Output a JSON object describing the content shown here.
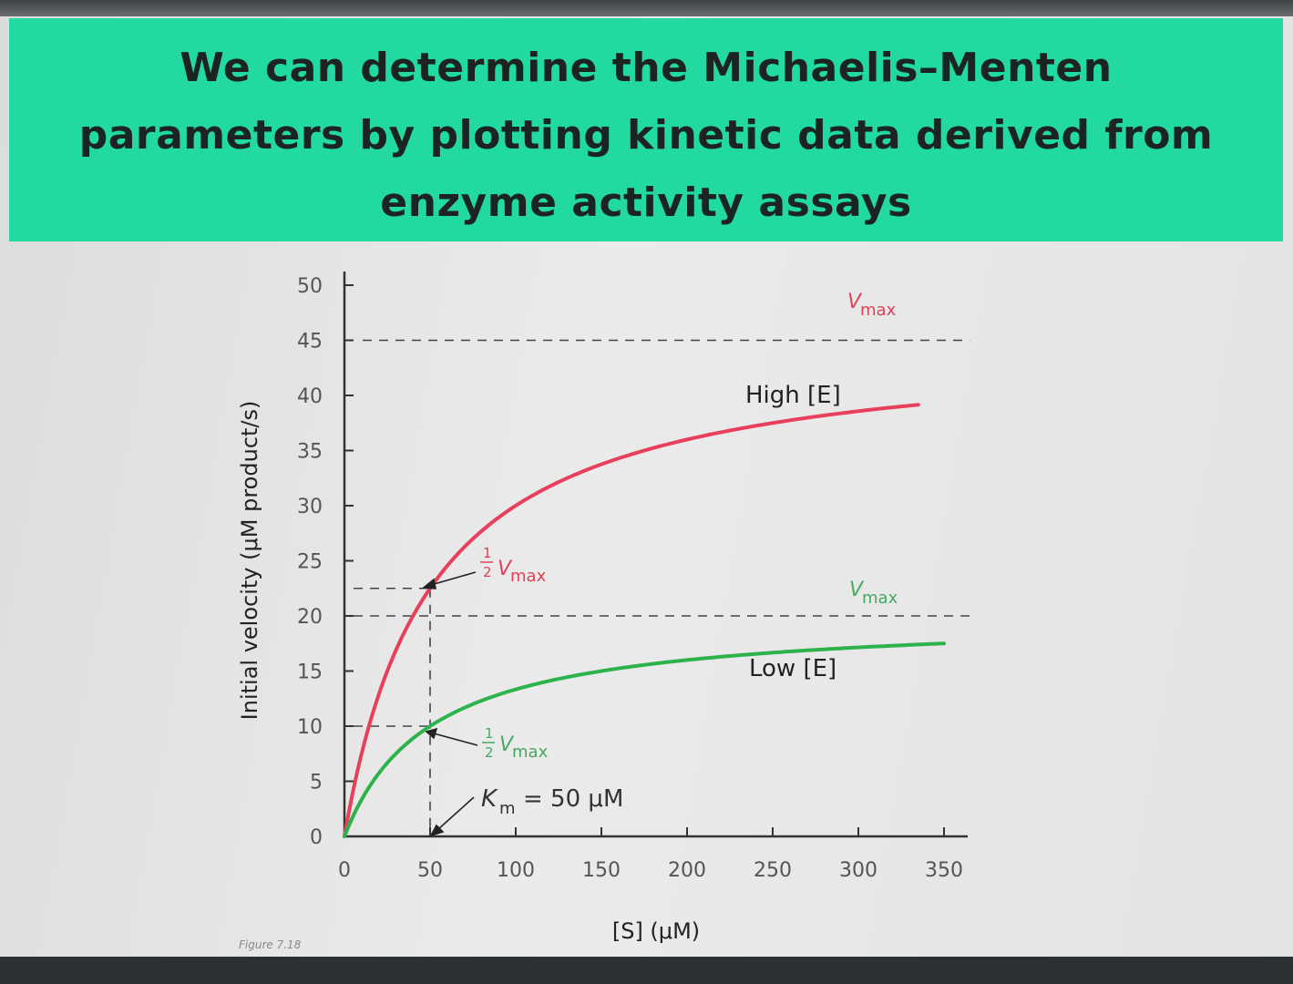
{
  "slide": {
    "title": "We can determine the Michaelis–Menten parameters by plotting kinetic data derived from enzyme activity assays",
    "title_lines": [
      "We can determine the Michaelis–Menten",
      "parameters by plotting kinetic data derived from",
      "enzyme activity assays"
    ],
    "figure_caption": "Figure 7.18"
  },
  "colors": {
    "banner": "#22d9a2",
    "high_curve": "#e8405c",
    "low_curve": "#2db34c",
    "axis": "#333333"
  },
  "chart_data": {
    "type": "line",
    "xlabel": "[S] (μM)",
    "ylabel": "Initial velocity (μM product/s)",
    "xlim": [
      0,
      350
    ],
    "ylim": [
      0,
      50
    ],
    "x_ticks": [
      0,
      50,
      100,
      150,
      200,
      250,
      300,
      350
    ],
    "y_ticks": [
      0,
      5,
      10,
      15,
      20,
      25,
      30,
      35,
      40,
      45,
      50
    ],
    "grid": false,
    "series": [
      {
        "name": "High [E]",
        "color": "#e8405c",
        "vmax": 45,
        "km": 50,
        "x": [
          0,
          10,
          25,
          50,
          75,
          100,
          150,
          200,
          250,
          300,
          335
        ],
        "y": [
          0,
          7.5,
          15,
          22.5,
          27,
          30,
          33.75,
          36,
          37.5,
          38.6,
          39.2
        ]
      },
      {
        "name": "Low [E]",
        "color": "#2db34c",
        "vmax": 20,
        "km": 50,
        "x": [
          0,
          10,
          25,
          50,
          75,
          100,
          150,
          200,
          250,
          300,
          350
        ],
        "y": [
          0,
          3.3,
          6.7,
          10,
          12,
          13.3,
          15,
          16,
          16.7,
          17.1,
          17.5
        ]
      }
    ],
    "annotations": {
      "vmax_label": "V",
      "vmax_sub": "max",
      "half_num": "1",
      "half_den": "2",
      "km_symbol": "K",
      "km_sub": "m",
      "km_text": "= 50 μM"
    }
  }
}
